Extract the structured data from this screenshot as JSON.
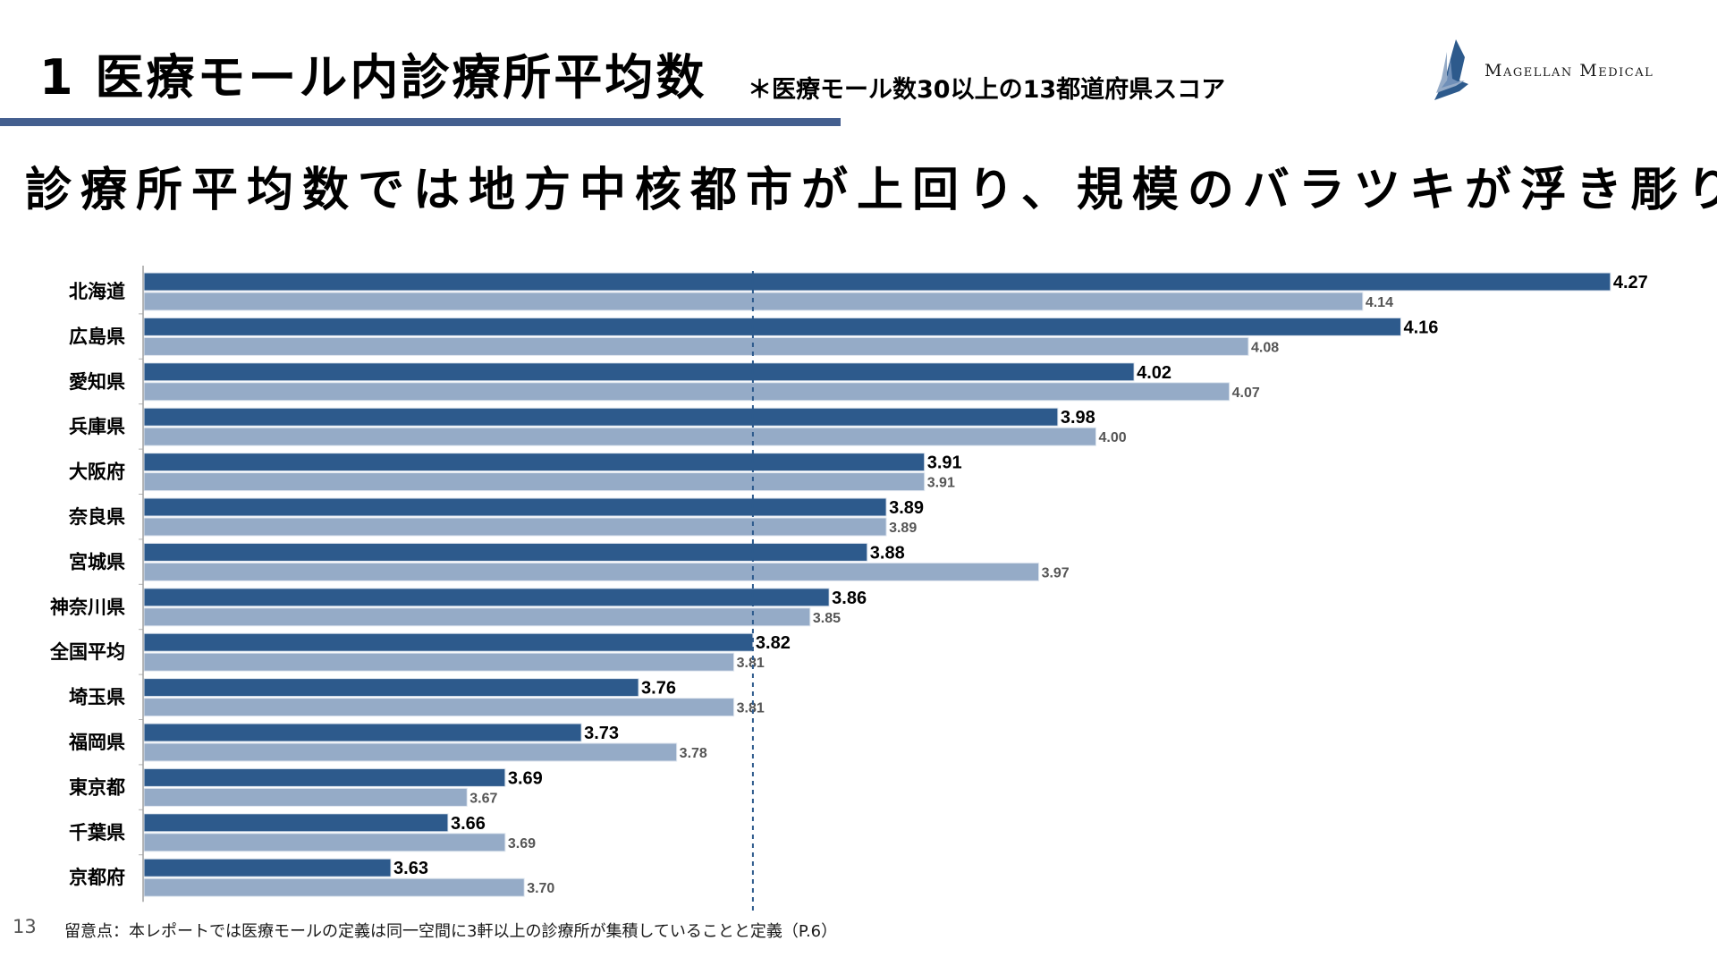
{
  "header": {
    "title": "1 医療モール内診療所平均数",
    "subtitle": "＊医療モール数30以上の13都道府県スコア",
    "logo_text": "Magellan Medical",
    "logo_icon": "sail-icon"
  },
  "headline": "診療所平均数では地方中核都市が上回り、規模のバラツキが浮き彫りに",
  "footer": {
    "page_number": "13",
    "note": "留意点：本レポートでは医療モールの定義は同一空間に3軒以上の診療所が集積していることと定義（P.6）"
  },
  "colors": {
    "series_primary": "#2d5a8c",
    "series_secondary": "#95abc7",
    "reference_line": "#2d5a8c",
    "title_rule": "#445f8f",
    "label_primary": "#000000",
    "label_secondary": "#555555"
  },
  "chart_data": {
    "type": "bar",
    "orientation": "horizontal",
    "title": "",
    "xlabel": "",
    "ylabel": "",
    "xlim": [
      3.5,
      4.3
    ],
    "grid": false,
    "legend": "none",
    "categories": [
      "北海道",
      "広島県",
      "愛知県",
      "兵庫県",
      "大阪府",
      "奈良県",
      "宮城県",
      "神奈川県",
      "全国平均",
      "埼玉県",
      "福岡県",
      "東京都",
      "千葉県",
      "京都府"
    ],
    "series": [
      {
        "name": "series-1",
        "values": [
          4.27,
          4.16,
          4.02,
          3.98,
          3.91,
          3.89,
          3.88,
          3.86,
          3.82,
          3.76,
          3.73,
          3.69,
          3.66,
          3.63
        ]
      },
      {
        "name": "series-2",
        "values": [
          4.14,
          4.08,
          4.07,
          4.0,
          3.91,
          3.89,
          3.97,
          3.85,
          3.81,
          3.81,
          3.78,
          3.67,
          3.69,
          3.7
        ]
      }
    ],
    "reference_line": {
      "label": "全国平均",
      "value": 3.82,
      "style": "dashed"
    }
  }
}
